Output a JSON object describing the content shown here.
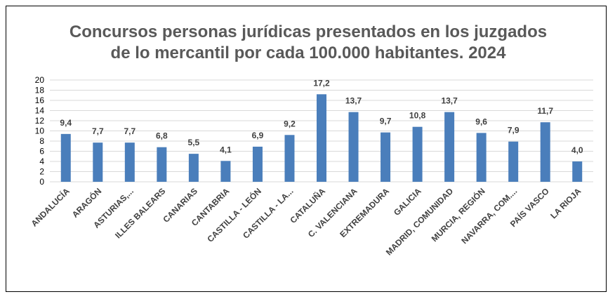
{
  "chart_data": {
    "type": "bar",
    "title": "Concursos personas jurídicas presentados en los juzgados de lo mercantil por cada 100.000 habitantes. 2024",
    "title_lines": [
      "Concursos personas jurídicas presentados en los juzgados",
      "de lo mercantil por cada 100.000 habitantes. 2024"
    ],
    "categories": [
      "ANDALUCÍA",
      "ARAGÓN",
      "ASTURIAS,...",
      "ILLES BALEARS",
      "CANARIAS",
      "CANTABRIA",
      "CASTILLA - LEÓN",
      "CASTILLA - LA...",
      "CATALUÑA",
      "C. VALENCIANA",
      "EXTREMADURA",
      "GALICIA",
      "MADRID, COMUNIDAD",
      "MURCIA, REGIÓN",
      "NAVARRA, COM....",
      "PAÍS VASCO",
      "LA RIOJA"
    ],
    "values": [
      9.4,
      7.7,
      7.7,
      6.8,
      5.5,
      4.1,
      6.9,
      9.2,
      17.2,
      13.7,
      9.7,
      10.8,
      13.7,
      9.6,
      7.9,
      11.7,
      4.0
    ],
    "value_labels": [
      "9,4",
      "7,7",
      "7,7",
      "6,8",
      "5,5",
      "4,1",
      "6,9",
      "9,2",
      "17,2",
      "13,7",
      "9,7",
      "10,8",
      "13,7",
      "9,6",
      "7,9",
      "11,7",
      "4,0"
    ],
    "y_ticks": [
      0,
      2,
      4,
      6,
      8,
      10,
      12,
      14,
      16,
      18,
      20
    ],
    "ylim": [
      0,
      20
    ],
    "xlabel": "",
    "ylabel": "",
    "grid": true,
    "legend": "none",
    "bar_color": "#4a7ebb"
  }
}
